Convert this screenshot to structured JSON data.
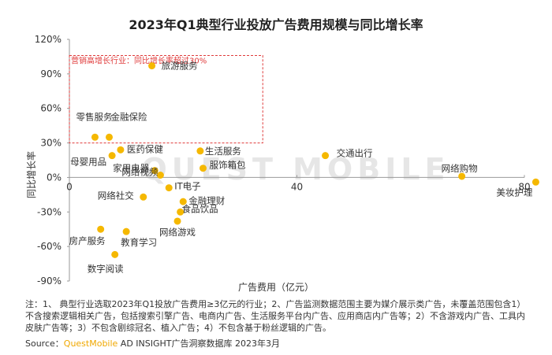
{
  "header": {
    "title": "2023年Q1典型行业投放广告费用规模与同比增长率"
  },
  "watermark": "QUEST MOBILE",
  "chart_data": {
    "type": "scatter",
    "title": "2023年Q1典型行业投放广告费用规模与同比增长率",
    "xlabel": "广告费用（亿元）",
    "ylabel": "同比增长率",
    "xlim": [
      0,
      80
    ],
    "ylim": [
      -90,
      120
    ],
    "x_ticks": [
      {
        "value": 0,
        "label": "0"
      },
      {
        "value": 40,
        "label": "40"
      },
      {
        "value": 80,
        "label": "80"
      }
    ],
    "y_ticks": [
      {
        "value": 120,
        "label": "120%"
      },
      {
        "value": 90,
        "label": "90%"
      },
      {
        "value": 60,
        "label": "60%"
      },
      {
        "value": 30,
        "label": "30%"
      },
      {
        "value": 0,
        "label": "0%"
      },
      {
        "value": -30,
        "label": "-30%"
      },
      {
        "value": -60,
        "label": "-60%"
      },
      {
        "value": -90,
        "label": "-90%"
      }
    ],
    "grid": false,
    "marker_color": "#f5b800",
    "highlight_region": {
      "label": "营销高增长行业：同比增长率超过30%",
      "x": [
        0,
        34
      ],
      "y": [
        30,
        106
      ],
      "color": "#e03c3c"
    },
    "points": [
      {
        "label": "旅游服务",
        "x": 14.5,
        "y": 97
      },
      {
        "label": "零售服务",
        "x": 4.5,
        "y": 35
      },
      {
        "label": "金融保险",
        "x": 7,
        "y": 35
      },
      {
        "label": "医药保健",
        "x": 9,
        "y": 24
      },
      {
        "label": "生活服务",
        "x": 23,
        "y": 23
      },
      {
        "label": "交通出行",
        "x": 45,
        "y": 19
      },
      {
        "label": "母婴用品",
        "x": 7.5,
        "y": 19
      },
      {
        "label": "家用电器",
        "x": 15,
        "y": 6
      },
      {
        "label": "服饰箱包",
        "x": 23.5,
        "y": 8
      },
      {
        "label": "网络视频",
        "x": 16,
        "y": 2
      },
      {
        "label": "网络购物",
        "x": 69,
        "y": 1
      },
      {
        "label": "美妆护理",
        "x": 82,
        "y": -4
      },
      {
        "label": "IT电子",
        "x": 17.5,
        "y": -9
      },
      {
        "label": "网络社交",
        "x": 13,
        "y": -17
      },
      {
        "label": "金融理财",
        "x": 20,
        "y": -21
      },
      {
        "label": "食品饮品",
        "x": 19.5,
        "y": -30
      },
      {
        "label": "网络游戏",
        "x": 19,
        "y": -38
      },
      {
        "label": "房产服务",
        "x": 5.5,
        "y": -45
      },
      {
        "label": "教育学习",
        "x": 10,
        "y": -47
      },
      {
        "label": "数字阅读",
        "x": 8,
        "y": -67
      }
    ]
  },
  "footer": {
    "note": "注：1、 典型行业选取2023年Q1投放广告费用≥3亿元的行业；2、广告监测数据范围主要为媒介展示类广告，未覆盖范围包含1）不含搜索逻辑相关广告，包括搜索引擎广告、电商内广告、生活服务平台内广告、应用商店内广告等；2）不含游戏内广告、工具内皮肤广告等；3）不包含剧综冠名、植入广告；4）不包含基于粉丝逻辑的广告。",
    "source_prefix": "Source：",
    "source_brand": "QuestMobile",
    "source_suffix": " AD INSIGHT广告洞察数据库 2023年3月"
  }
}
